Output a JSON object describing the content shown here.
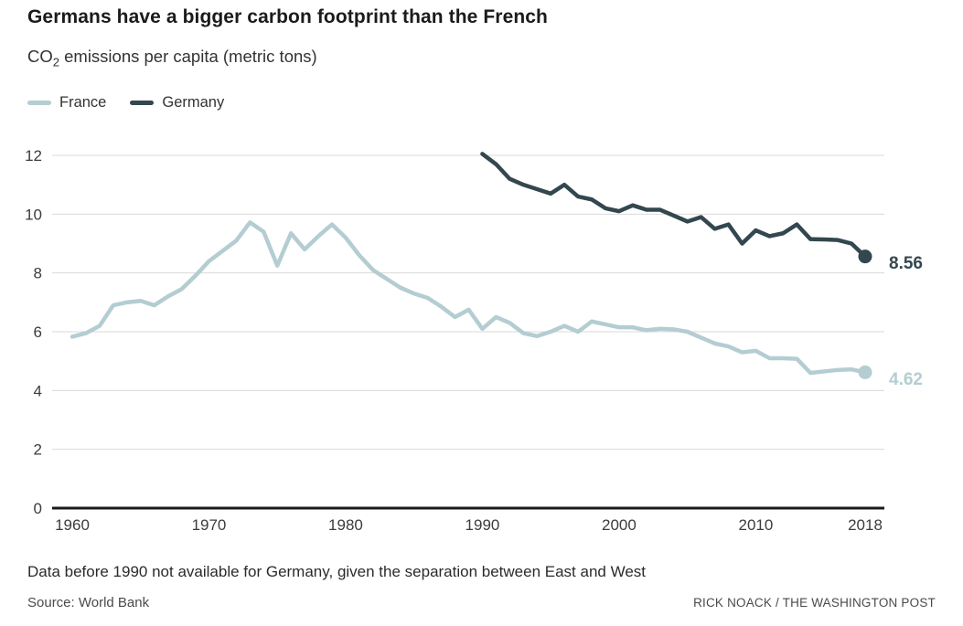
{
  "chart_data": {
    "type": "line",
    "title": "Germans have a bigger carbon footprint than the French",
    "subtitle_prefix": "CO",
    "subtitle_sub": "2",
    "subtitle_rest": " emissions per capita (metric tons)",
    "xlabel": "",
    "ylabel": "",
    "xlim": [
      1960,
      2018
    ],
    "ylim": [
      0,
      12
    ],
    "x_ticks": [
      1960,
      1970,
      1980,
      1990,
      2000,
      2010,
      2018
    ],
    "y_ticks": [
      0,
      2,
      4,
      6,
      8,
      10,
      12
    ],
    "grid": "horizontal",
    "legend_position": "top-left",
    "colors": {
      "grid": "#d9d9d9",
      "axis": "#1a1a1a",
      "tick_text": "#3c3c3c"
    },
    "series": [
      {
        "name": "France",
        "color": "#b4cdd2",
        "start_year": 1960,
        "values": [
          5.83,
          5.95,
          6.2,
          6.9,
          7.0,
          7.05,
          6.9,
          7.2,
          7.45,
          7.9,
          8.4,
          8.75,
          9.1,
          9.72,
          9.4,
          8.25,
          9.35,
          8.8,
          9.25,
          9.65,
          9.2,
          8.6,
          8.1,
          7.8,
          7.5,
          7.3,
          7.15,
          6.85,
          6.5,
          6.75,
          6.1,
          6.5,
          6.3,
          5.95,
          5.85,
          6.0,
          6.2,
          6.0,
          6.35,
          6.25,
          6.15,
          6.15,
          6.05,
          6.1,
          6.08,
          6.0,
          5.8,
          5.6,
          5.5,
          5.3,
          5.35,
          5.1,
          5.1,
          5.08,
          4.6,
          4.65,
          4.7,
          4.72,
          4.62
        ],
        "end_label": "4.62"
      },
      {
        "name": "Germany",
        "color": "#33474f",
        "start_year": 1990,
        "values": [
          12.05,
          11.7,
          11.2,
          11.0,
          10.85,
          10.7,
          11.0,
          10.6,
          10.5,
          10.2,
          10.1,
          10.3,
          10.15,
          10.15,
          9.95,
          9.75,
          9.9,
          9.5,
          9.65,
          9.0,
          9.45,
          9.25,
          9.35,
          9.65,
          9.15,
          9.14,
          9.12,
          9.0,
          8.56
        ],
        "end_label": "8.56"
      }
    ]
  },
  "notes": {
    "footnote": "Data before 1990 not available for Germany, given the separation between East and West",
    "source": "Source: World Bank",
    "credit": "RICK NOACK / THE WASHINGTON POST"
  }
}
